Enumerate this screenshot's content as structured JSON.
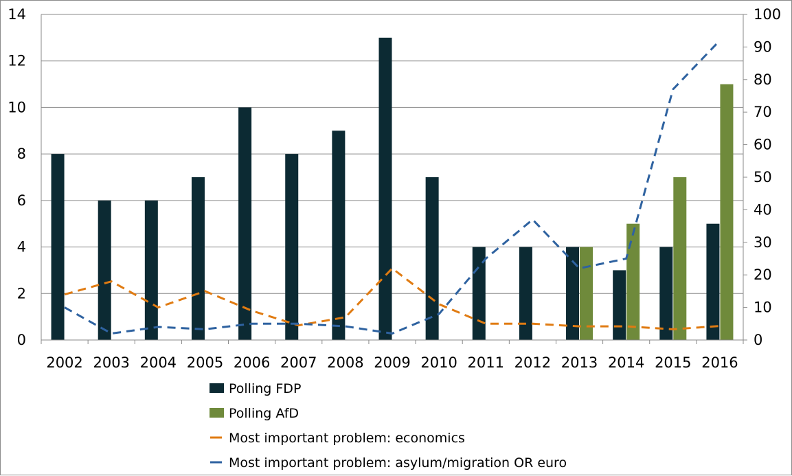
{
  "chart_data": {
    "type": "bar",
    "title": "",
    "xlabel": "",
    "ylabel": "",
    "y2label": "",
    "categories": [
      "2002",
      "2003",
      "2004",
      "2005",
      "2006",
      "2007",
      "2008",
      "2009",
      "2010",
      "2011",
      "2012",
      "2013",
      "2014",
      "2015",
      "2016"
    ],
    "ylim": [
      0,
      14
    ],
    "y_ticks": [
      "0",
      "2",
      "4",
      "6",
      "8",
      "10",
      "12",
      "14"
    ],
    "y2lim": [
      0,
      100
    ],
    "y2_ticks": [
      "0",
      "10",
      "20",
      "30",
      "40",
      "50",
      "60",
      "70",
      "80",
      "90",
      "100"
    ],
    "grid": true,
    "legend_position": "bottom",
    "bar_series": [
      {
        "name": "Polling FDP",
        "color": "#0c2a33",
        "values": [
          8,
          6,
          6,
          7,
          10,
          8,
          9,
          13,
          7,
          4,
          4,
          4,
          3,
          4,
          5
        ]
      },
      {
        "name": "Polling AfD",
        "color": "#6f8a3b",
        "values": [
          null,
          null,
          null,
          null,
          null,
          null,
          null,
          null,
          null,
          null,
          null,
          4,
          5,
          7,
          11
        ]
      }
    ],
    "line_series": [
      {
        "name": "Most important problem: economics",
        "color": "#e07b12",
        "axis": "right",
        "dashed": true,
        "values": [
          14,
          18,
          10,
          15,
          9,
          4.5,
          7,
          22,
          11,
          5,
          5,
          4.2,
          4.2,
          3.3,
          4.3
        ]
      },
      {
        "name": "Most important problem: asylum/migration OR euro",
        "color": "#2e62a0",
        "axis": "right",
        "dashed": true,
        "values": [
          10,
          2,
          4,
          3.3,
          5,
          5,
          4.2,
          2,
          8,
          25,
          37,
          22,
          25,
          77,
          92
        ]
      }
    ]
  }
}
